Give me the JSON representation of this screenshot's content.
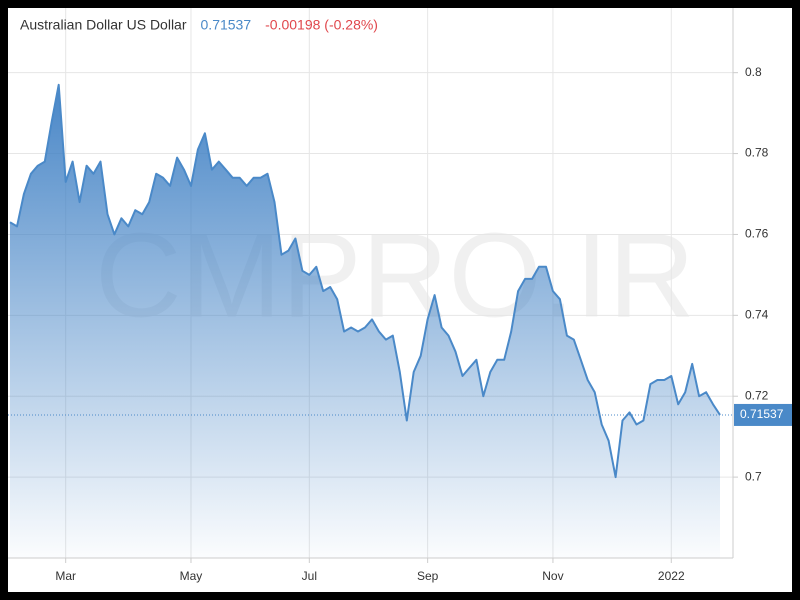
{
  "chart_data": {
    "type": "area",
    "title": "Australian Dollar US Dollar",
    "last_price": 0.71537,
    "change": "-0.00198 (-0.28%)",
    "watermark": "CMPRO.IR",
    "color": "#4a89c8",
    "grid": true,
    "categories": [
      null,
      null,
      null,
      null,
      null,
      null,
      null,
      null,
      "Mar",
      null,
      null,
      null,
      null,
      null,
      null,
      null,
      null,
      null,
      null,
      null,
      null,
      null,
      null,
      null,
      null,
      null,
      "May",
      null,
      null,
      null,
      null,
      null,
      null,
      null,
      null,
      null,
      null,
      null,
      null,
      null,
      null,
      null,
      null,
      "Jul",
      null,
      null,
      null,
      null,
      null,
      null,
      null,
      null,
      null,
      null,
      null,
      null,
      null,
      null,
      null,
      null,
      "Sep",
      null,
      null,
      null,
      null,
      null,
      null,
      null,
      null,
      null,
      null,
      null,
      null,
      null,
      null,
      null,
      null,
      null,
      "Nov",
      null,
      null,
      null,
      null,
      null,
      null,
      null,
      null,
      null,
      null,
      null,
      null,
      null,
      null,
      null,
      null,
      "2022",
      null,
      null,
      null,
      null,
      null,
      null,
      null
    ],
    "values": [
      0.763,
      0.762,
      0.77,
      0.775,
      0.777,
      0.778,
      0.788,
      0.797,
      0.773,
      0.778,
      0.768,
      0.777,
      0.775,
      0.778,
      0.765,
      0.76,
      0.764,
      0.762,
      0.766,
      0.765,
      0.768,
      0.775,
      0.774,
      0.772,
      0.779,
      0.776,
      0.772,
      0.781,
      0.785,
      0.776,
      0.778,
      0.776,
      0.774,
      0.774,
      0.772,
      0.774,
      0.774,
      0.775,
      0.768,
      0.755,
      0.756,
      0.759,
      0.751,
      0.75,
      0.752,
      0.746,
      0.747,
      0.744,
      0.736,
      0.737,
      0.736,
      0.737,
      0.739,
      0.736,
      0.734,
      0.735,
      0.726,
      0.714,
      0.726,
      0.73,
      0.739,
      0.745,
      0.737,
      0.735,
      0.731,
      0.725,
      0.727,
      0.729,
      0.72,
      0.726,
      0.729,
      0.729,
      0.736,
      0.746,
      0.749,
      0.749,
      0.752,
      0.752,
      0.746,
      0.744,
      0.735,
      0.734,
      0.729,
      0.724,
      0.721,
      0.713,
      0.709,
      0.7,
      0.714,
      0.716,
      0.713,
      0.714,
      0.723,
      0.724,
      0.724,
      0.725,
      0.718,
      0.721,
      0.728,
      0.72,
      0.721,
      0.718,
      0.71537
    ],
    "ylim": [
      0.68,
      0.815
    ],
    "yticks": [
      0.7,
      0.72,
      0.74,
      0.76,
      0.78,
      0.8
    ]
  }
}
